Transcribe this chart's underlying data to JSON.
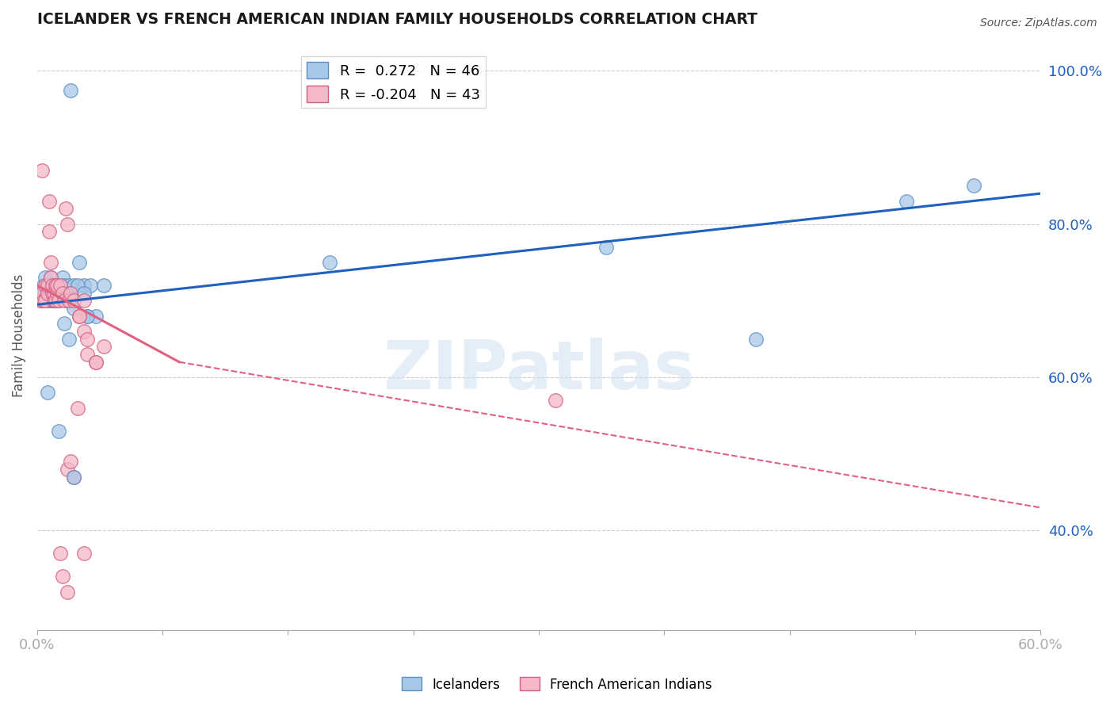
{
  "title": "ICELANDER VS FRENCH AMERICAN INDIAN FAMILY HOUSEHOLDS CORRELATION CHART",
  "source": "Source: ZipAtlas.com",
  "ylabel": "Family Households",
  "right_yticks": [
    "100.0%",
    "80.0%",
    "60.0%",
    "40.0%"
  ],
  "right_ytick_vals": [
    1.0,
    0.8,
    0.6,
    0.4
  ],
  "xlim": [
    0.0,
    0.6
  ],
  "ylim": [
    0.27,
    1.04
  ],
  "legend_blue_r": "0.272",
  "legend_blue_n": "46",
  "legend_pink_r": "-0.204",
  "legend_pink_n": "43",
  "blue_scatter_color": "#a8c8e8",
  "blue_scatter_edge": "#5a8fc0",
  "pink_scatter_color": "#f5b8c8",
  "pink_scatter_edge": "#d06080",
  "blue_line_color": "#2060c0",
  "pink_line_color": "#e06080",
  "watermark": "ZIPatlas",
  "blue_points_x": [
    0.002,
    0.003,
    0.004,
    0.005,
    0.005,
    0.006,
    0.006,
    0.007,
    0.007,
    0.008,
    0.008,
    0.009,
    0.009,
    0.01,
    0.01,
    0.011,
    0.011,
    0.012,
    0.012,
    0.013,
    0.014,
    0.015,
    0.016,
    0.017,
    0.018,
    0.019,
    0.02,
    0.022,
    0.025,
    0.028,
    0.03,
    0.032,
    0.035,
    0.04,
    0.016,
    0.019,
    0.022,
    0.024,
    0.028,
    0.03,
    0.175,
    0.34,
    0.43,
    0.52,
    0.56,
    0.02
  ],
  "blue_points_y": [
    0.7,
    0.71,
    0.72,
    0.71,
    0.73,
    0.7,
    0.72,
    0.7,
    0.72,
    0.71,
    0.73,
    0.7,
    0.72,
    0.7,
    0.71,
    0.72,
    0.7,
    0.71,
    0.72,
    0.7,
    0.71,
    0.73,
    0.72,
    0.71,
    0.7,
    0.72,
    0.71,
    0.72,
    0.75,
    0.72,
    0.68,
    0.72,
    0.68,
    0.72,
    0.67,
    0.65,
    0.69,
    0.72,
    0.71,
    0.68,
    0.75,
    0.77,
    0.65,
    0.83,
    0.85,
    0.975
  ],
  "pink_points_x": [
    0.002,
    0.003,
    0.004,
    0.005,
    0.005,
    0.006,
    0.006,
    0.007,
    0.007,
    0.008,
    0.008,
    0.009,
    0.009,
    0.01,
    0.01,
    0.011,
    0.011,
    0.012,
    0.012,
    0.013,
    0.014,
    0.015,
    0.016,
    0.017,
    0.018,
    0.019,
    0.02,
    0.022,
    0.025,
    0.028,
    0.03,
    0.035,
    0.025,
    0.028,
    0.03,
    0.035,
    0.04,
    0.018,
    0.02,
    0.022,
    0.024,
    0.003,
    0.028
  ],
  "pink_points_y": [
    0.7,
    0.71,
    0.7,
    0.72,
    0.7,
    0.71,
    0.72,
    0.83,
    0.79,
    0.75,
    0.73,
    0.71,
    0.72,
    0.7,
    0.71,
    0.72,
    0.7,
    0.71,
    0.72,
    0.7,
    0.72,
    0.71,
    0.7,
    0.82,
    0.8,
    0.7,
    0.71,
    0.7,
    0.68,
    0.66,
    0.63,
    0.62,
    0.68,
    0.7,
    0.65,
    0.62,
    0.64,
    0.48,
    0.49,
    0.47,
    0.56,
    0.87,
    0.37
  ],
  "grid_color": "#cccccc",
  "grid_style": "--",
  "background_color": "#ffffff",
  "pink_low_points_x": [
    0.014,
    0.015,
    0.018,
    0.31
  ],
  "pink_low_points_y": [
    0.37,
    0.34,
    0.32,
    0.57
  ],
  "blue_low_points_x": [
    0.006,
    0.013,
    0.022
  ],
  "blue_low_points_y": [
    0.58,
    0.53,
    0.47
  ]
}
